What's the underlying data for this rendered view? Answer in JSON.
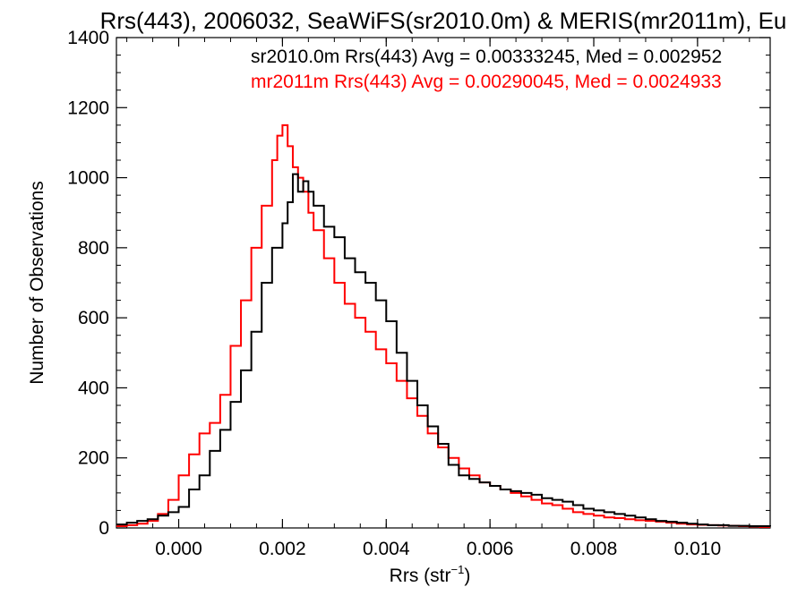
{
  "chart_data": {
    "type": "line",
    "title": "Rrs(443), 2006032, SeaWiFS(sr2010.0m) & MERIS(mr2011m), Eu",
    "xlabel": "Rrs (str",
    "xlabel_sup": "−1",
    "xlabel_close": ")",
    "ylabel": "Number of Observations",
    "xlim": [
      -0.0012,
      0.0114
    ],
    "ylim": [
      0,
      1400
    ],
    "xticks": [
      "0.000",
      "0.002",
      "0.004",
      "0.006",
      "0.008",
      "0.010"
    ],
    "xtick_values": [
      0.0,
      0.002,
      0.004,
      0.006,
      0.008,
      0.01
    ],
    "yticks": [
      "0",
      "200",
      "400",
      "600",
      "800",
      "1000",
      "1200",
      "1400"
    ],
    "ytick_values": [
      0,
      200,
      400,
      600,
      800,
      1000,
      1200,
      1400
    ],
    "annotations": [
      "sr2010.0m Rrs(443) Avg = 0.00333245, Med = 0.002952",
      "mr2011m Rrs(443) Avg = 0.00290045, Med = 0.0024933"
    ],
    "series": [
      {
        "color": "#000000",
        "x": [
          -0.0012,
          -0.001,
          -0.0008,
          -0.0006,
          -0.0004,
          -0.0002,
          0.0,
          0.0002,
          0.0004,
          0.0006,
          0.0008,
          0.001,
          0.0012,
          0.0014,
          0.0016,
          0.0018,
          0.002,
          0.0021,
          0.0022,
          0.0023,
          0.0024,
          0.0025,
          0.0026,
          0.0028,
          0.003,
          0.0032,
          0.0034,
          0.0036,
          0.0038,
          0.004,
          0.0042,
          0.0044,
          0.0046,
          0.0048,
          0.005,
          0.0052,
          0.0054,
          0.0056,
          0.0058,
          0.006,
          0.0062,
          0.0064,
          0.0066,
          0.0068,
          0.007,
          0.0072,
          0.0074,
          0.0076,
          0.0078,
          0.008,
          0.0082,
          0.0084,
          0.0086,
          0.0088,
          0.009,
          0.0092,
          0.0094,
          0.0096,
          0.0098,
          0.01,
          0.0102,
          0.0104,
          0.0106,
          0.0108,
          0.011,
          0.0112,
          0.0114
        ],
        "values": [
          10,
          15,
          20,
          25,
          35,
          45,
          60,
          110,
          150,
          220,
          280,
          360,
          450,
          560,
          700,
          800,
          870,
          930,
          1010,
          960,
          990,
          960,
          920,
          860,
          830,
          770,
          730,
          700,
          650,
          590,
          500,
          420,
          350,
          290,
          240,
          180,
          150,
          140,
          130,
          120,
          110,
          105,
          100,
          95,
          85,
          80,
          75,
          65,
          55,
          50,
          45,
          40,
          35,
          30,
          25,
          20,
          18,
          15,
          12,
          10,
          8,
          8,
          6,
          6,
          5,
          5,
          4
        ]
      },
      {
        "color": "#ff0000",
        "x": [
          -0.0012,
          -0.001,
          -0.0008,
          -0.0006,
          -0.0004,
          -0.0002,
          0.0,
          0.0002,
          0.0004,
          0.0006,
          0.0008,
          0.001,
          0.0012,
          0.0014,
          0.0016,
          0.0018,
          0.0019,
          0.002,
          0.0021,
          0.0022,
          0.0023,
          0.0024,
          0.0025,
          0.0026,
          0.0028,
          0.003,
          0.0032,
          0.0034,
          0.0036,
          0.0038,
          0.004,
          0.0042,
          0.0044,
          0.0046,
          0.0048,
          0.005,
          0.0052,
          0.0054,
          0.0056,
          0.0058,
          0.006,
          0.0062,
          0.0064,
          0.0066,
          0.0068,
          0.007,
          0.0072,
          0.0074,
          0.0076,
          0.0078,
          0.008,
          0.0082,
          0.0084,
          0.0086,
          0.0088,
          0.009,
          0.0092,
          0.0094,
          0.0096,
          0.0098,
          0.01,
          0.0102,
          0.0104,
          0.0106,
          0.0108,
          0.011,
          0.0112,
          0.0114
        ],
        "values": [
          5,
          8,
          12,
          20,
          40,
          80,
          150,
          210,
          270,
          300,
          380,
          520,
          650,
          800,
          920,
          1050,
          1120,
          1150,
          1090,
          1030,
          1000,
          960,
          900,
          850,
          770,
          700,
          640,
          600,
          560,
          510,
          470,
          420,
          370,
          320,
          270,
          230,
          200,
          170,
          150,
          130,
          120,
          110,
          100,
          90,
          80,
          70,
          65,
          55,
          45,
          40,
          35,
          30,
          28,
          25,
          22,
          20,
          18,
          15,
          12,
          10,
          9,
          8,
          7,
          6,
          5,
          4,
          3,
          3
        ]
      }
    ]
  }
}
